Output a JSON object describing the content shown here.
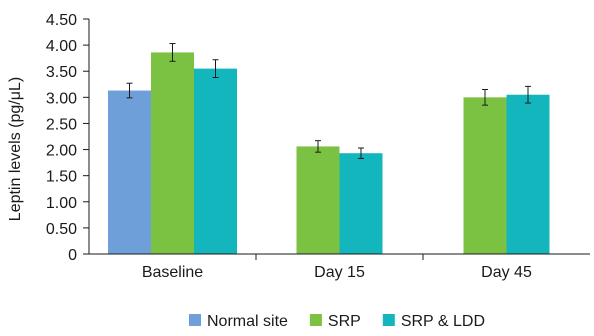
{
  "chart_data": {
    "type": "bar",
    "ylabel": "Leptin levels (pg/μL)",
    "ylim": [
      0,
      4.5
    ],
    "yticks": [
      "0",
      "0.50",
      "1.00",
      "1.50",
      "2.00",
      "2.50",
      "3.00",
      "3.50",
      "4.00",
      "4.50"
    ],
    "categories": [
      "Baseline",
      "Day 15",
      "Day 45"
    ],
    "legend_position": "bottom",
    "grid": false,
    "series": [
      {
        "name": "Normal site",
        "color": "#6f9fd8",
        "values": [
          3.13,
          null,
          null
        ],
        "errors": [
          0.14,
          null,
          null
        ]
      },
      {
        "name": "SRP",
        "color": "#7cc242",
        "values": [
          3.86,
          2.06,
          3.0
        ],
        "errors": [
          0.17,
          0.11,
          0.15
        ]
      },
      {
        "name": "SRP & LDD",
        "color": "#14b6bd",
        "values": [
          3.55,
          1.93,
          3.05
        ],
        "errors": [
          0.17,
          0.1,
          0.16
        ]
      }
    ]
  }
}
